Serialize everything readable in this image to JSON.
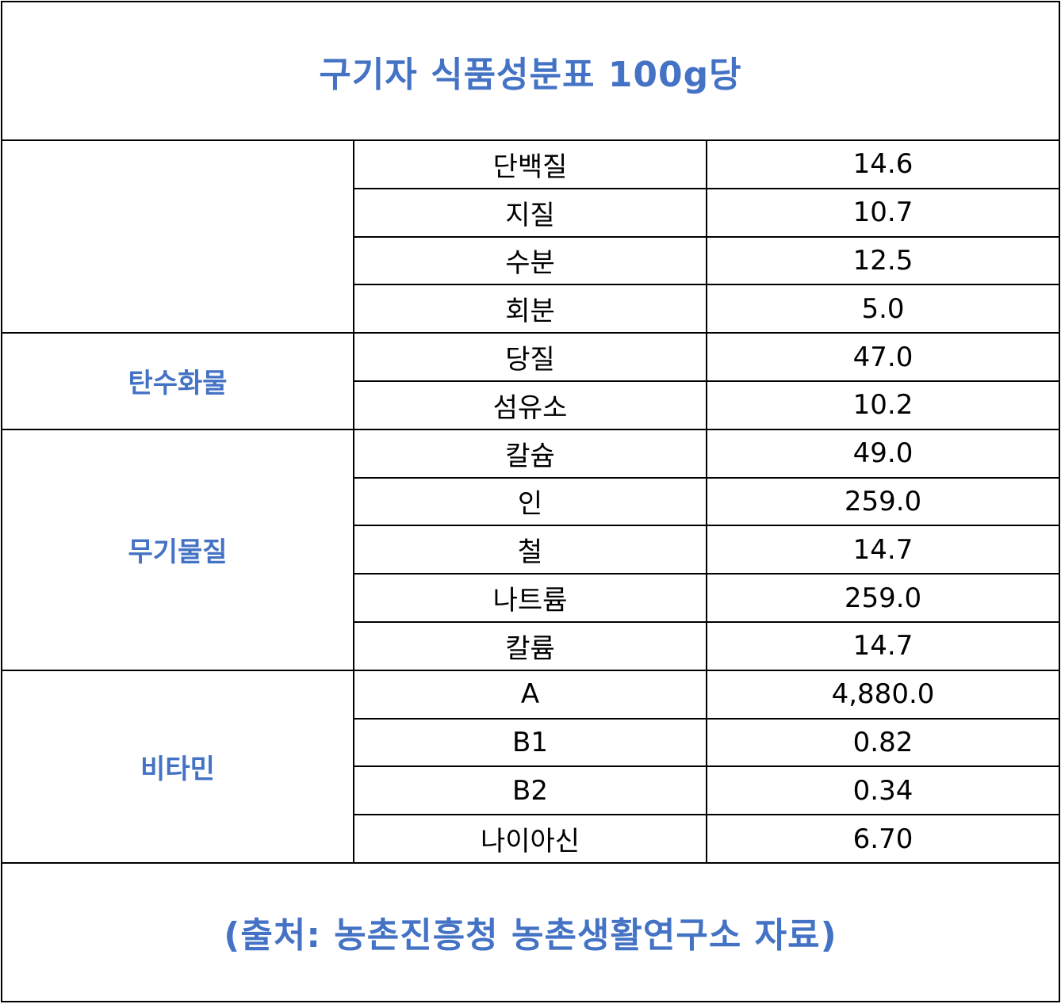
{
  "title": "구기자 식품성분표 100g당",
  "source": "(출처: 농촌진흥청 농촌생활연구소 자료)",
  "colors": {
    "accent": "#4472c4",
    "border": "#000000",
    "text": "#000000"
  },
  "groups": {
    "general": "",
    "carbohydrate": "탄수화물",
    "mineral": "무기물질",
    "vitamin": "비타민"
  },
  "rows": [
    {
      "item": "단백질",
      "value": "14.6"
    },
    {
      "item": "지질",
      "value": "10.7"
    },
    {
      "item": "수분",
      "value": "12.5"
    },
    {
      "item": "회분",
      "value": "5.0"
    },
    {
      "item": "당질",
      "value": "47.0"
    },
    {
      "item": "섬유소",
      "value": "10.2"
    },
    {
      "item": "칼슘",
      "value": "49.0"
    },
    {
      "item": "인",
      "value": "259.0"
    },
    {
      "item": "철",
      "value": "14.7"
    },
    {
      "item": "나트륨",
      "value": "259.0"
    },
    {
      "item": "칼륨",
      "value": "14.7"
    },
    {
      "item": "A",
      "value": "4,880.0"
    },
    {
      "item": "B1",
      "value": "0.82"
    },
    {
      "item": "B2",
      "value": "0.34"
    },
    {
      "item": "나이아신",
      "value": "6.70"
    }
  ]
}
